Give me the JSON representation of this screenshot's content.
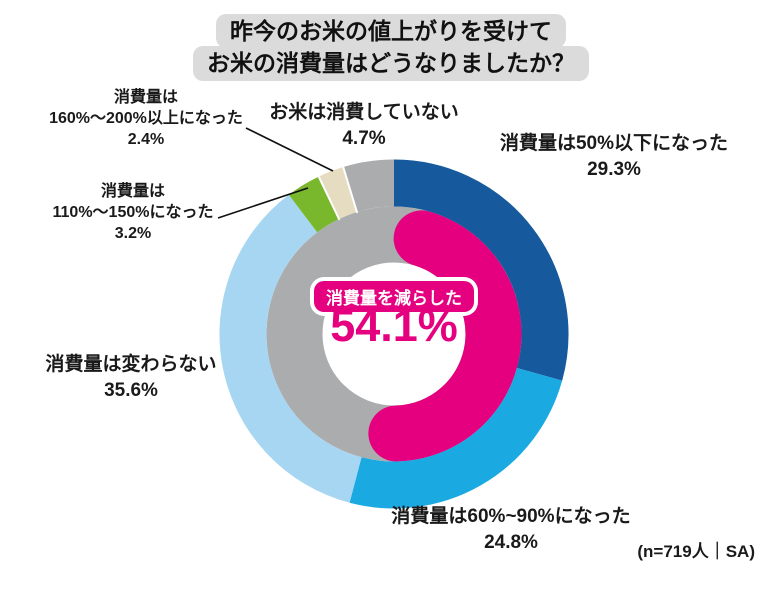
{
  "title": {
    "line1": "昨今のお米の値上がりを受けて",
    "line2": "お米の消費量はどうなりましたか？"
  },
  "note": "(n=719人｜SA)",
  "center": {
    "label": "消費量を減らした",
    "value": "54.1%"
  },
  "callouts": {
    "none": {
      "line1": "お米は消費していない",
      "pct": "4.7%"
    },
    "seg50": {
      "line1": "消費量は50%以下になった",
      "pct": "29.3%"
    },
    "seg6090": {
      "line1": "消費量は60%~90%になった",
      "pct": "24.8%"
    },
    "unchanged": {
      "line1": "消費量は変わらない",
      "pct": "35.6%"
    },
    "inc110": {
      "line1": "消費量は",
      "line2": "110%～150%になった",
      "pct": "3.2%"
    },
    "inc160": {
      "line1": "消費量は",
      "line2": "160%～200%以上になった",
      "pct": "2.4%"
    }
  },
  "chart_data": {
    "type": "pie",
    "subtype": "double-donut",
    "title": "昨今のお米の値上がりを受けて お米の消費量はどうなりましたか？",
    "sample_note": "(n=719人｜SA)",
    "start_angle_deg": 0,
    "direction": "clockwise",
    "segments": [
      {
        "label": "消費量は50%以下になった",
        "value": 29.3,
        "color": "#16599d"
      },
      {
        "label": "消費量は60%~90%になった",
        "value": 24.8,
        "color": "#1ba9e2"
      },
      {
        "label": "消費量は変わらない",
        "value": 35.6,
        "color": "#a6d6f2"
      },
      {
        "label": "消費量は110%～150%になった",
        "value": 3.2,
        "color": "#79b72c"
      },
      {
        "label": "消費量は160%～200%以上になった",
        "value": 2.4,
        "color": "#e6dcc2"
      },
      {
        "label": "お米は消費していない",
        "value": 4.7,
        "color": "#abacae"
      }
    ],
    "inner_ring": {
      "label": "消費量を減らした",
      "value": 54.1,
      "highlight_color": "#e4007f",
      "base_color": "#abacae"
    }
  },
  "colors": {
    "accent_pink": "#e4007f",
    "title_bubble": "#dbdbdb",
    "text": "#1a1a1a",
    "leader_line": "#111111"
  }
}
